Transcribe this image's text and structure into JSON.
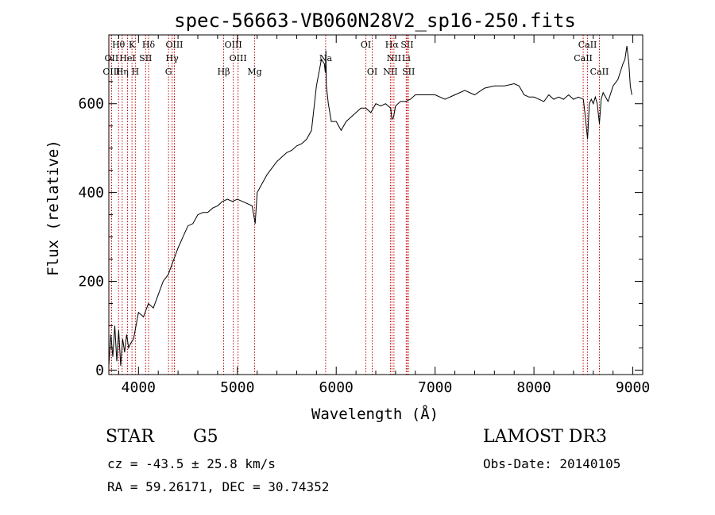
{
  "chart_data": {
    "type": "line",
    "title": "spec-56663-VB060N28V2_sp16-250.fits",
    "xlabel": "Wavelength (Å)",
    "ylabel": "Flux (relative)",
    "xlim": [
      3700,
      9100
    ],
    "ylim": [
      -10,
      755
    ],
    "xticks": [
      4000,
      5000,
      6000,
      7000,
      8000,
      9000
    ],
    "xtick_labels": [
      "4000",
      "5000",
      "6000",
      "7000",
      "8000",
      "9000"
    ],
    "yticks": [
      0,
      200,
      400,
      600
    ],
    "ytick_labels": [
      "0",
      "200",
      "400",
      "600"
    ],
    "series": [
      {
        "name": "spectrum",
        "x": [
          3700,
          3720,
          3740,
          3760,
          3780,
          3800,
          3820,
          3840,
          3860,
          3880,
          3900,
          3920,
          3950,
          4000,
          4050,
          4100,
          4150,
          4200,
          4250,
          4300,
          4350,
          4400,
          4450,
          4500,
          4550,
          4600,
          4650,
          4700,
          4750,
          4800,
          4850,
          4900,
          4950,
          5000,
          5050,
          5100,
          5150,
          5180,
          5200,
          5250,
          5300,
          5350,
          5400,
          5450,
          5500,
          5550,
          5600,
          5650,
          5700,
          5750,
          5800,
          5850,
          5880,
          5890,
          5895,
          5900,
          5920,
          5950,
          6000,
          6050,
          6100,
          6150,
          6200,
          6250,
          6300,
          6350,
          6400,
          6450,
          6500,
          6550,
          6563,
          6580,
          6600,
          6650,
          6700,
          6750,
          6800,
          6900,
          7000,
          7100,
          7200,
          7300,
          7400,
          7500,
          7600,
          7700,
          7800,
          7850,
          7900,
          7950,
          8000,
          8050,
          8100,
          8150,
          8200,
          8250,
          8300,
          8350,
          8400,
          8450,
          8500,
          8520,
          8542,
          8560,
          8580,
          8600,
          8620,
          8640,
          8662,
          8680,
          8700,
          8750,
          8800,
          8850,
          8900,
          8920,
          8940,
          8960,
          8975,
          8990
        ],
        "y": [
          10,
          80,
          30,
          100,
          20,
          90,
          10,
          70,
          40,
          80,
          50,
          60,
          70,
          130,
          120,
          150,
          140,
          170,
          200,
          215,
          245,
          275,
          300,
          325,
          330,
          350,
          355,
          355,
          365,
          370,
          380,
          385,
          380,
          385,
          380,
          375,
          370,
          330,
          400,
          420,
          440,
          455,
          470,
          480,
          490,
          495,
          505,
          510,
          520,
          540,
          640,
          700,
          690,
          670,
          720,
          640,
          600,
          560,
          560,
          540,
          560,
          570,
          580,
          590,
          590,
          580,
          600,
          595,
          600,
          590,
          565,
          570,
          595,
          605,
          605,
          610,
          620,
          620,
          620,
          610,
          620,
          630,
          620,
          635,
          640,
          640,
          645,
          640,
          620,
          615,
          615,
          610,
          605,
          620,
          610,
          615,
          610,
          620,
          610,
          615,
          610,
          570,
          520,
          600,
          610,
          600,
          615,
          600,
          555,
          610,
          625,
          605,
          640,
          655,
          690,
          700,
          730,
          690,
          640,
          620
        ]
      }
    ],
    "line_markers": [
      {
        "label": "Hθ",
        "x": 3798,
        "row": 0
      },
      {
        "label": "K",
        "x": 3934,
        "row": 0
      },
      {
        "label": "Hδ",
        "x": 4102,
        "row": 0
      },
      {
        "label": "OIII",
        "x": 4363,
        "row": 0
      },
      {
        "label": "OIII",
        "x": 4959,
        "row": 0
      },
      {
        "label": "OI",
        "x": 6300,
        "row": 0
      },
      {
        "label": "Hα",
        "x": 6563,
        "row": 0
      },
      {
        "label": "SII",
        "x": 6717,
        "row": 0
      },
      {
        "label": "CaII",
        "x": 8542,
        "row": 0
      },
      {
        "label": "OII",
        "x": 3727,
        "row": 1
      },
      {
        "label": "HeI",
        "x": 3889,
        "row": 1
      },
      {
        "label": "SII",
        "x": 4072,
        "row": 1
      },
      {
        "label": "Hγ",
        "x": 4340,
        "row": 1
      },
      {
        "label": "OIII",
        "x": 5007,
        "row": 1
      },
      {
        "label": "Na",
        "x": 5893,
        "row": 1
      },
      {
        "label": "NII",
        "x": 6584,
        "row": 1
      },
      {
        "label": "Li",
        "x": 6708,
        "row": 1
      },
      {
        "label": "CaII",
        "x": 8498,
        "row": 1
      },
      {
        "label": "OIII",
        "x": 3727,
        "row": 2
      },
      {
        "label": "Hη",
        "x": 3835,
        "row": 2
      },
      {
        "label": "H",
        "x": 3968,
        "row": 2
      },
      {
        "label": "G",
        "x": 4304,
        "row": 2
      },
      {
        "label": "Hβ",
        "x": 4861,
        "row": 2
      },
      {
        "label": "Mg",
        "x": 5175,
        "row": 2
      },
      {
        "label": "OI",
        "x": 6364,
        "row": 2
      },
      {
        "label": "NII",
        "x": 6548,
        "row": 2
      },
      {
        "label": "SII",
        "x": 6731,
        "row": 2
      },
      {
        "label": "CaII",
        "x": 8662,
        "row": 2
      }
    ]
  },
  "info": {
    "object_class": "STAR",
    "subclass": "G5",
    "survey": "LAMOST DR3",
    "redshift": "cz = -43.5 ± 25.8 km/s",
    "obs_date": "Obs-Date: 20140105",
    "coords": "RA =  59.26171, DEC =  30.74352"
  }
}
